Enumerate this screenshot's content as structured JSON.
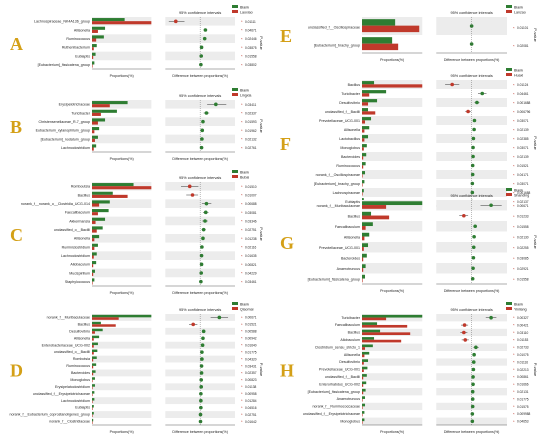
{
  "figure": {
    "colors": {
      "green": "#2e7d32",
      "red": "#c0392b",
      "letter": "#d4a017",
      "row_odd": "#ececec",
      "row_even": "#ffffff",
      "sig": "#c0392b"
    },
    "x_axis_left": "Proportions(%)",
    "x_axis_right": "Difference between proportions(%)",
    "ci_title": "95% confidence intervals",
    "p_label": "P-value"
  },
  "panels": [
    {
      "letter": "A",
      "legend": [
        "Blank",
        "Laoxiao"
      ],
      "features": [
        {
          "name": "Lachnospiraceae_NK4A136_group",
          "g": 0.55,
          "r": 1.0,
          "d": -0.7,
          "lo": -0.9,
          "hi": -0.45,
          "p": "0.01111"
        },
        {
          "name": "Allisonella",
          "g": 0.22,
          "r": 0.1,
          "d": 0.15,
          "lo": 0.12,
          "hi": 0.2,
          "p": "0.04671"
        },
        {
          "name": "Ruminococcus",
          "g": 0.2,
          "r": 0.07,
          "d": 0.13,
          "lo": 0.1,
          "hi": 0.16,
          "p": "0.02446"
        },
        {
          "name": "Ruthenibacterium",
          "g": 0.08,
          "r": 0.03,
          "d": 0.04,
          "lo": 0.02,
          "hi": 0.06,
          "p": "0.03875"
        },
        {
          "name": "Eubiaptis",
          "g": 0.06,
          "r": 0.02,
          "d": 0.03,
          "lo": 0.01,
          "hi": 0.05,
          "p": "0.01558"
        },
        {
          "name": "[Eubacterium]_fissicatena_group",
          "g": 0.04,
          "r": 0.01,
          "d": 0.02,
          "lo": 0.0,
          "hi": 0.04,
          "p": "0.03802"
        }
      ]
    },
    {
      "letter": "B",
      "legend": [
        "Blank",
        "Lingxia"
      ],
      "features": [
        {
          "name": "Erysipelotrichaceae",
          "g": 0.6,
          "r": 0.3,
          "d": 0.45,
          "lo": 0.2,
          "hi": 0.75,
          "p": "0.03411"
        },
        {
          "name": "Turicibacter",
          "g": 0.42,
          "r": 0.15,
          "d": 0.18,
          "lo": 0.1,
          "hi": 0.26,
          "p": "0.02337"
        },
        {
          "name": "Christensenellaceae_R-7_group",
          "g": 0.22,
          "r": 0.1,
          "d": 0.08,
          "lo": 0.05,
          "hi": 0.12,
          "p": "0.01593"
        },
        {
          "name": "Eubacterium_xylanophilum_group",
          "g": 0.12,
          "r": 0.04,
          "d": 0.06,
          "lo": 0.03,
          "hi": 0.09,
          "p": "0.01962"
        },
        {
          "name": "[Eubacterium]_nodatum_group",
          "g": 0.1,
          "r": 0.05,
          "d": 0.05,
          "lo": 0.02,
          "hi": 0.08,
          "p": "0.02132"
        },
        {
          "name": "Lachnoclostridium",
          "g": 0.07,
          "r": 0.03,
          "d": 0.04,
          "lo": 0.01,
          "hi": 0.06,
          "p": "0.02761"
        }
      ]
    },
    {
      "letter": "C",
      "legend": [
        "Blank",
        "Bubai"
      ],
      "features": [
        {
          "name": "Romboutsia",
          "g": 0.7,
          "r": 1.0,
          "d": -0.3,
          "lo": -0.55,
          "hi": -0.05,
          "p": "0.01510"
        },
        {
          "name": "Bacillus",
          "g": 0.35,
          "r": 0.6,
          "d": -0.22,
          "lo": -0.4,
          "hi": -0.06,
          "p": "0.01007"
        },
        {
          "name": "norank_f__norank_o__Clostridia_UCG-014",
          "g": 0.3,
          "r": 0.12,
          "d": 0.18,
          "lo": 0.05,
          "hi": 0.32,
          "p": "0.00688"
        },
        {
          "name": "Faecalibaculum",
          "g": 0.28,
          "r": 0.1,
          "d": 0.16,
          "lo": 0.08,
          "hi": 0.24,
          "p": "0.03081"
        },
        {
          "name": "Akkermansia",
          "g": 0.22,
          "r": 0.06,
          "d": 0.14,
          "lo": 0.06,
          "hi": 0.22,
          "p": "0.03346"
        },
        {
          "name": "unclassified_o__Bacilli",
          "g": 0.18,
          "r": 0.08,
          "d": 0.1,
          "lo": 0.04,
          "hi": 0.16,
          "p": "0.02751"
        },
        {
          "name": "Allisonella",
          "g": 0.12,
          "r": 0.04,
          "d": 0.08,
          "lo": 0.04,
          "hi": 0.12,
          "p": "0.01238"
        },
        {
          "name": "Ruminiclostridium",
          "g": 0.1,
          "r": 0.04,
          "d": 0.05,
          "lo": 0.02,
          "hi": 0.08,
          "p": "0.02116"
        },
        {
          "name": "Lachnoclostridium",
          "g": 0.08,
          "r": 0.03,
          "d": 0.04,
          "lo": 0.01,
          "hi": 0.07,
          "p": "0.01635"
        },
        {
          "name": "Allobaculum",
          "g": 0.07,
          "r": 0.02,
          "d": 0.04,
          "lo": 0.02,
          "hi": 0.06,
          "p": "0.00821"
        },
        {
          "name": "Mucispirillum",
          "g": 0.05,
          "r": 0.02,
          "d": 0.03,
          "lo": 0.01,
          "hi": 0.05,
          "p": "0.04229"
        },
        {
          "name": "Staphylococcus",
          "g": 0.04,
          "r": 0.01,
          "d": 0.02,
          "lo": 0.0,
          "hi": 0.04,
          "p": "0.03461"
        }
      ]
    },
    {
      "letter": "D",
      "legend": [
        "Blank",
        "Qiaomai"
      ],
      "features": [
        {
          "name": "norank_f__Muribaculaceae",
          "g": 1.0,
          "r": 0.45,
          "d": 0.55,
          "lo": 0.3,
          "hi": 0.8,
          "p": "0.00671"
        },
        {
          "name": "Bacillus",
          "g": 0.15,
          "r": 0.4,
          "d": -0.2,
          "lo": -0.32,
          "hi": -0.08,
          "p": "0.01521"
        },
        {
          "name": "Desulfovibrio",
          "g": 0.18,
          "r": 0.05,
          "d": 0.1,
          "lo": 0.05,
          "hi": 0.15,
          "p": "0.00588"
        },
        {
          "name": "Allisonella",
          "g": 0.12,
          "r": 0.03,
          "d": 0.08,
          "lo": 0.05,
          "hi": 0.11,
          "p": "0.00942"
        },
        {
          "name": "Enterobacteriaceae_UCG-002",
          "g": 0.1,
          "r": 0.03,
          "d": 0.07,
          "lo": 0.04,
          "hi": 0.1,
          "p": "0.01640"
        },
        {
          "name": "unclassified_o__Bacilli",
          "g": 0.09,
          "r": 0.03,
          "d": 0.05,
          "lo": 0.03,
          "hi": 0.08,
          "p": "0.01775"
        },
        {
          "name": "Rombotsia",
          "g": 0.08,
          "r": 0.02,
          "d": 0.05,
          "lo": 0.02,
          "hi": 0.08,
          "p": "0.04320"
        },
        {
          "name": "Ruminococcus",
          "g": 0.07,
          "r": 0.02,
          "d": 0.04,
          "lo": 0.02,
          "hi": 0.06,
          "p": "0.03431"
        },
        {
          "name": "Bacteroides",
          "g": 0.06,
          "r": 0.02,
          "d": 0.04,
          "lo": 0.02,
          "hi": 0.06,
          "p": "0.02357"
        },
        {
          "name": "Monoglobus",
          "g": 0.05,
          "r": 0.01,
          "d": 0.03,
          "lo": 0.01,
          "hi": 0.05,
          "p": "0.00823"
        },
        {
          "name": "Erysipelatoclostridium",
          "g": 0.05,
          "r": 0.01,
          "d": 0.03,
          "lo": 0.01,
          "hi": 0.05,
          "p": "0.01138"
        },
        {
          "name": "unclassified_f__Erysipelotrichaceae",
          "g": 0.04,
          "r": 0.01,
          "d": 0.02,
          "lo": 0.0,
          "hi": 0.04,
          "p": "0.00958"
        },
        {
          "name": "Lachnoclostridium",
          "g": 0.04,
          "r": 0.01,
          "d": 0.02,
          "lo": 0.0,
          "hi": 0.04,
          "p": "0.01284"
        },
        {
          "name": "Eubiaptis",
          "g": 0.03,
          "r": 0.01,
          "d": 0.02,
          "lo": 0.0,
          "hi": 0.03,
          "p": "0.04516"
        },
        {
          "name": "norank_f__Eubacterium_coprostanoligenes_group",
          "g": 0.03,
          "r": 0.01,
          "d": 0.01,
          "lo": 0.0,
          "hi": 0.03,
          "p": "0.02751"
        },
        {
          "name": "norank_f__Clostridiaceae",
          "g": 0.02,
          "r": 0.01,
          "d": 0.01,
          "lo": 0.0,
          "hi": 0.02,
          "p": "0.01642"
        }
      ]
    },
    {
      "letter": "E",
      "legend": [
        "Blank",
        "Lanzao"
      ],
      "features": [
        {
          "name": "unclassified_f__Oscillospiraceae",
          "g": 0.55,
          "r": 0.95,
          "d": 0.0,
          "lo": -0.02,
          "hi": 0.02,
          "p": "0.01101"
        },
        {
          "name": "[Eubacterium]_brachy_group",
          "g": 0.5,
          "r": 0.6,
          "d": 0.0,
          "lo": -0.02,
          "hi": 0.02,
          "p": "0.02081"
        }
      ]
    },
    {
      "letter": "F",
      "legend": [
        "Blank",
        "Huaxi"
      ],
      "features": [
        {
          "name": "Bacillus",
          "g": 0.2,
          "r": 1.0,
          "d": -0.55,
          "lo": -0.75,
          "hi": -0.35,
          "p": "0.01124"
        },
        {
          "name": "Turicibacter",
          "g": 0.4,
          "r": 0.12,
          "d": 0.3,
          "lo": 0.18,
          "hi": 0.42,
          "p": "0.04461"
        },
        {
          "name": "Desulfovibrio",
          "g": 0.25,
          "r": 0.1,
          "d": 0.15,
          "lo": 0.08,
          "hi": 0.22,
          "p": "0.001688"
        },
        {
          "name": "unclassified_f__Bacilli",
          "g": 0.1,
          "r": 0.22,
          "d": -0.1,
          "lo": -0.18,
          "hi": -0.02,
          "p": "0.006796"
        },
        {
          "name": "Prevotellaceae_UCG-001",
          "g": 0.15,
          "r": 0.05,
          "d": 0.08,
          "lo": 0.04,
          "hi": 0.12,
          "p": "0.03071"
        },
        {
          "name": "Allisonella",
          "g": 0.12,
          "r": 0.04,
          "d": 0.07,
          "lo": 0.03,
          "hi": 0.11,
          "p": "0.02139"
        },
        {
          "name": "Lactobacillus",
          "g": 0.1,
          "r": 0.04,
          "d": 0.05,
          "lo": 0.02,
          "hi": 0.08,
          "p": "0.02385"
        },
        {
          "name": "Monoglobus",
          "g": 0.08,
          "r": 0.03,
          "d": 0.04,
          "lo": 0.01,
          "hi": 0.07,
          "p": "0.03071"
        },
        {
          "name": "Bacteroides",
          "g": 0.07,
          "r": 0.02,
          "d": 0.04,
          "lo": 0.02,
          "hi": 0.06,
          "p": "0.02139"
        },
        {
          "name": "Ruminococcus",
          "g": 0.06,
          "r": 0.02,
          "d": 0.03,
          "lo": 0.01,
          "hi": 0.05,
          "p": "0.01521"
        },
        {
          "name": "norank_f__Oscillospiraceae",
          "g": 0.05,
          "r": 0.01,
          "d": 0.03,
          "lo": 0.01,
          "hi": 0.05,
          "p": "0.04171"
        },
        {
          "name": "[Eubacterium]_brachy_group",
          "g": 0.04,
          "r": 0.01,
          "d": 0.02,
          "lo": 0.0,
          "hi": 0.04,
          "p": "0.03071"
        },
        {
          "name": "Lachnospiraceae",
          "g": 0.03,
          "r": 0.01,
          "d": 0.02,
          "lo": 0.0,
          "hi": 0.03,
          "p": "0.001688"
        },
        {
          "name": "Eubiaptis",
          "g": 0.03,
          "r": 0.01,
          "d": 0.01,
          "lo": 0.0,
          "hi": 0.03,
          "p": "0.02137"
        }
      ]
    },
    {
      "letter": "G",
      "legend": [
        "Blank",
        "Shanding"
      ],
      "features": [
        {
          "name": "norank_f__Muribaculaceae",
          "g": 1.0,
          "r": 0.4,
          "d": 0.55,
          "lo": 0.25,
          "hi": 0.85,
          "p": "0.00671"
        },
        {
          "name": "Bacillus",
          "g": 0.15,
          "r": 0.45,
          "d": -0.22,
          "lo": -0.35,
          "hi": -0.1,
          "p": "0.01233"
        },
        {
          "name": "Faecalibaculum",
          "g": 0.18,
          "r": 0.06,
          "d": 0.1,
          "lo": 0.05,
          "hi": 0.15,
          "p": "0.01558"
        },
        {
          "name": "Allisonella",
          "g": 0.12,
          "r": 0.04,
          "d": 0.07,
          "lo": 0.03,
          "hi": 0.11,
          "p": "0.02130"
        },
        {
          "name": "Prevotellaceae_UCG-001",
          "g": 0.1,
          "r": 0.03,
          "d": 0.06,
          "lo": 0.03,
          "hi": 0.09,
          "p": "0.02255"
        },
        {
          "name": "Bacteroides",
          "g": 0.08,
          "r": 0.02,
          "d": 0.05,
          "lo": 0.02,
          "hi": 0.08,
          "p": "0.03085"
        },
        {
          "name": "Anaerotruncus",
          "g": 0.06,
          "r": 0.02,
          "d": 0.04,
          "lo": 0.02,
          "hi": 0.06,
          "p": "0.02921"
        },
        {
          "name": "[Eubacterium]_fissicatena_group",
          "g": 0.05,
          "r": 0.01,
          "d": 0.03,
          "lo": 0.01,
          "hi": 0.05,
          "p": "0.01558"
        }
      ]
    },
    {
      "letter": "H",
      "legend": [
        "Blank",
        "Yinliang"
      ],
      "features": [
        {
          "name": "Turicibacter",
          "g": 1.0,
          "r": 0.4,
          "d": 0.55,
          "lo": 0.4,
          "hi": 0.7,
          "p": "0.00327"
        },
        {
          "name": "Faecalibaculum",
          "g": 0.25,
          "r": 0.75,
          "d": -0.2,
          "lo": -0.3,
          "hi": -0.1,
          "p": "0.00421"
        },
        {
          "name": "Bacillus",
          "g": 0.3,
          "r": 0.8,
          "d": -0.22,
          "lo": -0.32,
          "hi": -0.12,
          "p": "0.03110"
        },
        {
          "name": "Allobaculum",
          "g": 0.2,
          "r": 0.65,
          "d": -0.18,
          "lo": -0.28,
          "hi": -0.08,
          "p": "0.01153"
        },
        {
          "name": "Clostridium_sensu_stricto_1",
          "g": 0.18,
          "r": 0.05,
          "d": 0.12,
          "lo": 0.05,
          "hi": 0.2,
          "p": "0.02733"
        },
        {
          "name": "Allisonella",
          "g": 0.12,
          "r": 0.04,
          "d": 0.07,
          "lo": 0.03,
          "hi": 0.11,
          "p": "0.01075"
        },
        {
          "name": "Desulfovibrio",
          "g": 0.1,
          "r": 0.03,
          "d": 0.06,
          "lo": 0.03,
          "hi": 0.09,
          "p": "0.01116"
        },
        {
          "name": "Prevotellaceae_UCG-001",
          "g": 0.09,
          "r": 0.03,
          "d": 0.05,
          "lo": 0.02,
          "hi": 0.08,
          "p": "0.02213"
        },
        {
          "name": "unclassified_f__Bacilli",
          "g": 0.08,
          "r": 0.02,
          "d": 0.04,
          "lo": 0.02,
          "hi": 0.07,
          "p": "0.00861"
        },
        {
          "name": "Enterorhabdus_UCG-002",
          "g": 0.07,
          "r": 0.02,
          "d": 0.04,
          "lo": 0.01,
          "hi": 0.06,
          "p": "0.01666"
        },
        {
          "name": "[Eubacterium]_fissicatena_group",
          "g": 0.06,
          "r": 0.02,
          "d": 0.03,
          "lo": 0.01,
          "hi": 0.05,
          "p": "0.02131"
        },
        {
          "name": "Anaerotruncus",
          "g": 0.05,
          "r": 0.01,
          "d": 0.03,
          "lo": 0.01,
          "hi": 0.05,
          "p": "0.01775"
        },
        {
          "name": "norank_f__Ruminococcaceae",
          "g": 0.05,
          "r": 0.01,
          "d": 0.03,
          "lo": 0.01,
          "hi": 0.05,
          "p": "0.01575"
        },
        {
          "name": "unclassified_f__Erysipelotrichaceae",
          "g": 0.04,
          "r": 0.01,
          "d": 0.02,
          "lo": 0.0,
          "hi": 0.04,
          "p": "0.009988"
        },
        {
          "name": "Monoglobus",
          "g": 0.04,
          "r": 0.01,
          "d": 0.02,
          "lo": 0.0,
          "hi": 0.04,
          "p": "0.04653"
        }
      ]
    }
  ]
}
